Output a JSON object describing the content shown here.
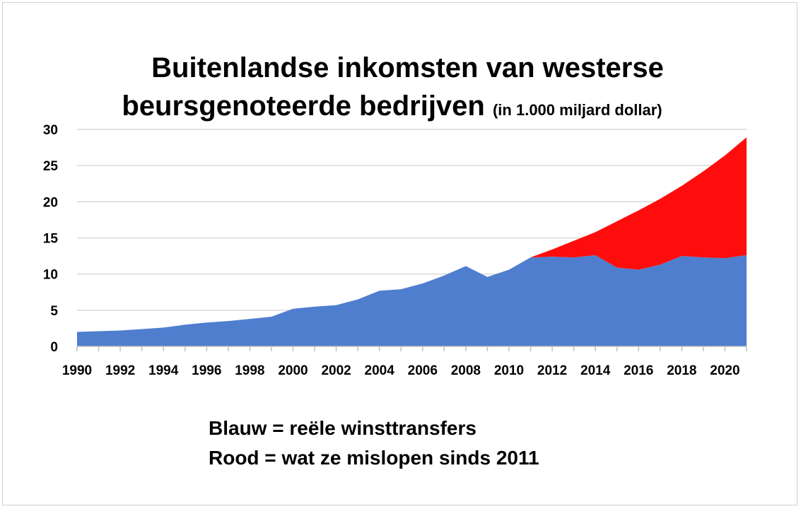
{
  "chart_data": {
    "type": "area",
    "title_main_line1": "Buitenlandse inkomsten van westerse",
    "title_main_line2": "beursgenoteerde bedrijven",
    "title_sub": "(in 1.000 miljard dollar)",
    "xlabel": "",
    "ylabel": "",
    "ylim": [
      0,
      30
    ],
    "yticks": [
      0,
      5,
      10,
      15,
      20,
      25,
      30
    ],
    "xlim": [
      1990,
      2021
    ],
    "xticks": [
      1990,
      1992,
      1994,
      1996,
      1998,
      2000,
      2002,
      2004,
      2006,
      2008,
      2010,
      2012,
      2014,
      2016,
      2018,
      2020
    ],
    "grid": true,
    "x": [
      1990,
      1991,
      1992,
      1993,
      1994,
      1995,
      1996,
      1997,
      1998,
      1999,
      2000,
      2001,
      2002,
      2003,
      2004,
      2005,
      2006,
      2007,
      2008,
      2009,
      2010,
      2011,
      2012,
      2013,
      2014,
      2015,
      2016,
      2017,
      2018,
      2019,
      2020,
      2021
    ],
    "series": [
      {
        "color": "#4f7ecf",
        "values": [
          2.0,
          2.1,
          2.2,
          2.4,
          2.6,
          3.0,
          3.3,
          3.5,
          3.8,
          4.1,
          5.2,
          5.5,
          5.7,
          6.5,
          7.7,
          7.9,
          8.7,
          9.8,
          11.1,
          9.6,
          10.6,
          12.3,
          12.4,
          12.3,
          12.6,
          10.9,
          10.6,
          11.3,
          12.5,
          12.3,
          12.2,
          12.6
        ]
      },
      {
        "color": "#ff0d0d",
        "values": [
          null,
          null,
          null,
          null,
          null,
          null,
          null,
          null,
          null,
          null,
          null,
          null,
          null,
          null,
          null,
          null,
          null,
          null,
          null,
          null,
          null,
          12.3,
          13.4,
          14.6,
          15.8,
          17.3,
          18.8,
          20.4,
          22.2,
          24.2,
          26.4,
          28.9
        ]
      }
    ],
    "legend_line1": "Blauw = reële winsttransfers",
    "legend_line2": "Rood = wat ze mislopen sinds 2011"
  }
}
